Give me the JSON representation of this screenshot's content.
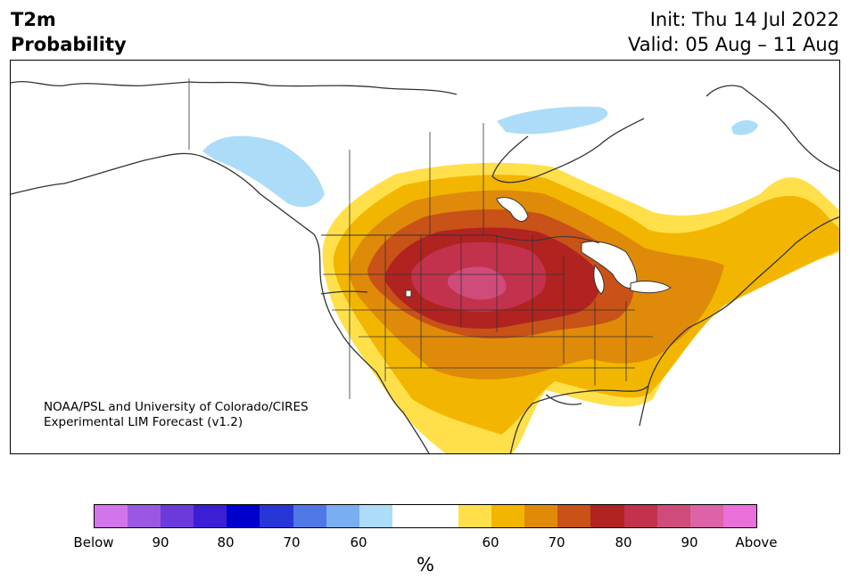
{
  "header": {
    "title_line1": "T2m",
    "title_line2": "Probability",
    "init": "Init: Thu 14 Jul 2022",
    "valid": "Valid: 05 Aug – 11 Aug"
  },
  "credit": {
    "line1": "NOAA/PSL and University of Colorado/CIRES",
    "line2": "Experimental LIM Forecast (v1.2)"
  },
  "colorbar": {
    "colors": [
      "#d375ea",
      "#9c57e2",
      "#6c3adb",
      "#3c1ed4",
      "#0000cc",
      "#2836d8",
      "#5077e6",
      "#7aaef0",
      "#acdcf8",
      "#ffffff",
      "#ffffff",
      "#ffe04a",
      "#f3b600",
      "#e08a0a",
      "#c85217",
      "#b12320",
      "#c2324d",
      "#cf4b7a",
      "#db63a6",
      "#e870d8"
    ],
    "ticks": [
      "Below",
      "90",
      "80",
      "70",
      "60",
      "60",
      "70",
      "80",
      "90",
      "Above"
    ],
    "unit": "%"
  }
}
